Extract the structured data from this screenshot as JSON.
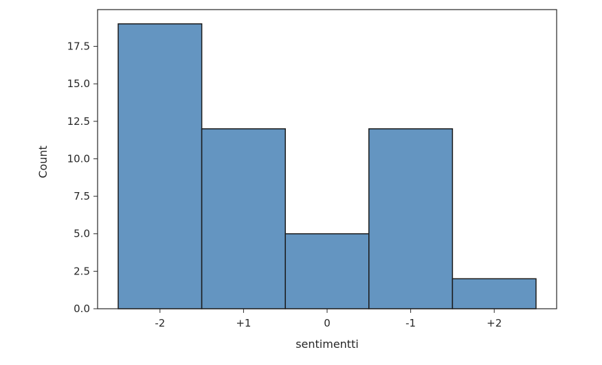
{
  "chart_data": {
    "type": "bar",
    "categories": [
      "-2",
      "+1",
      "0",
      "-1",
      "+2"
    ],
    "values": [
      19,
      12,
      5,
      12,
      2
    ],
    "xlabel": "sentimentti",
    "ylabel": "Count",
    "ylim": [
      0,
      19.95
    ],
    "yticks": [
      "0.0",
      "2.5",
      "5.0",
      "7.5",
      "10.0",
      "12.5",
      "15.0",
      "17.5"
    ],
    "ytick_values": [
      0,
      2.5,
      5,
      7.5,
      10,
      12.5,
      15,
      17.5
    ],
    "grid": false,
    "bar_color": "#6495C1",
    "edge_color": "#1a1a1a"
  }
}
